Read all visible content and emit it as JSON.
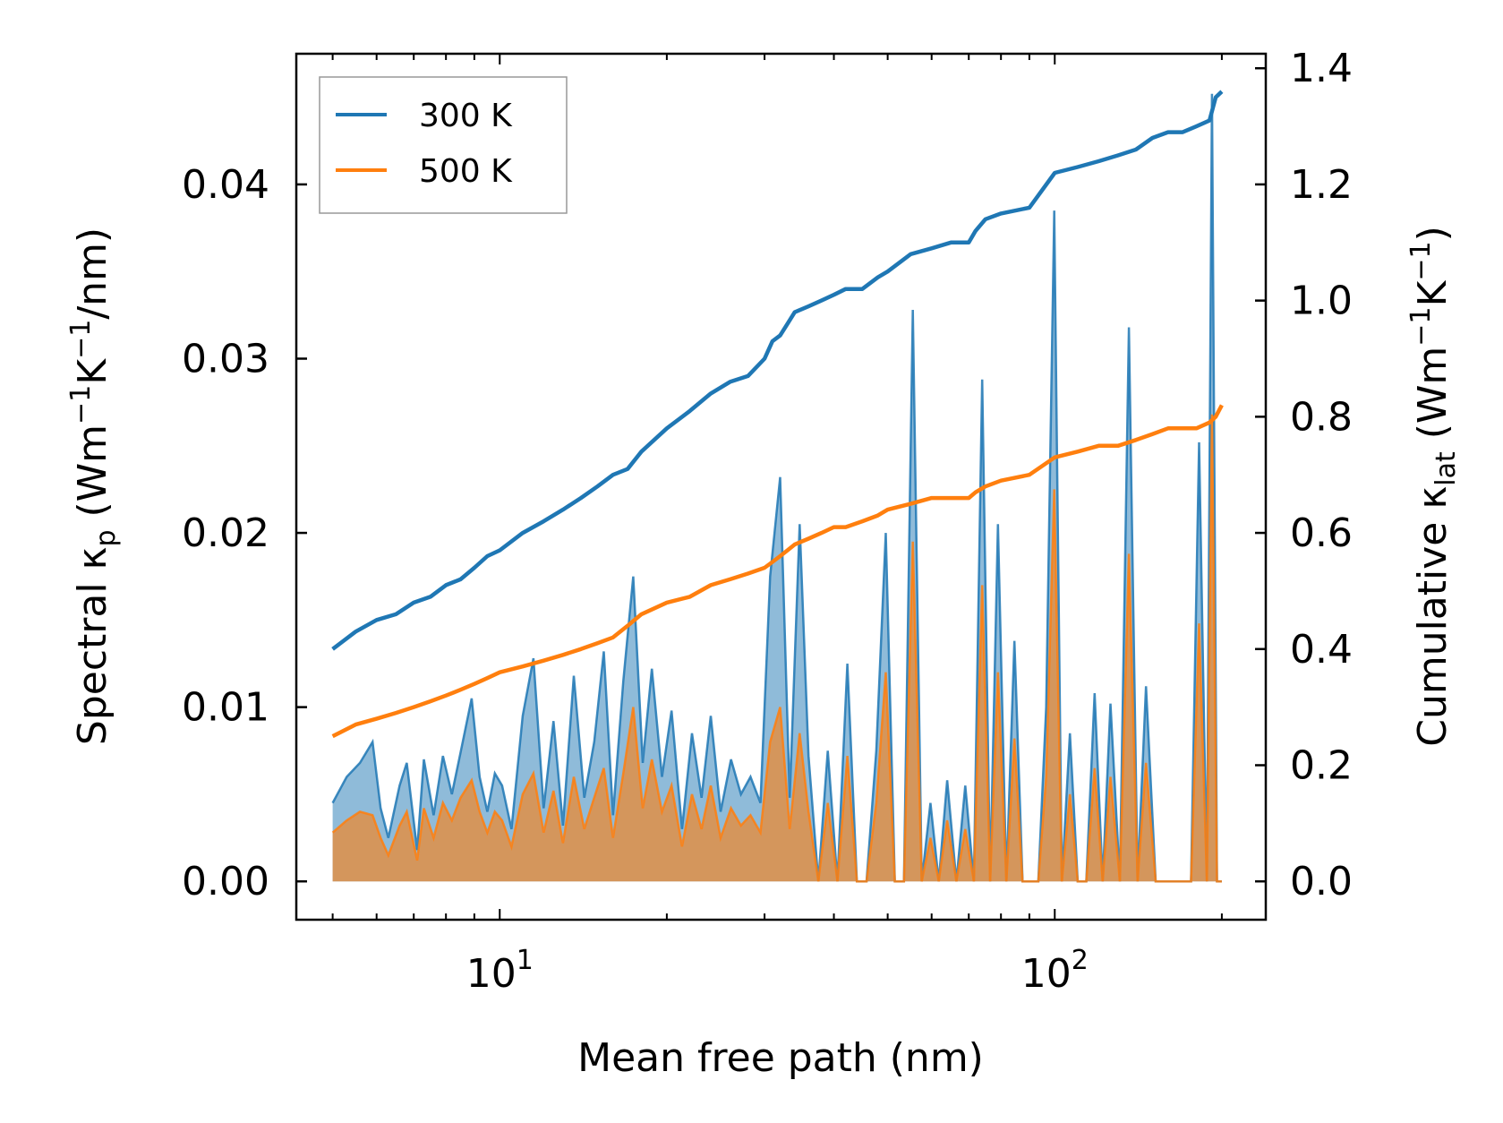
{
  "chart_data": {
    "type": "line",
    "title": "",
    "xlabel": "Mean free path (nm)",
    "ylabel_left": {
      "pre": "Spectral κ",
      "sub": "p",
      "post": " (Wm",
      "sup1": "−1",
      "mid": "K",
      "sup2": "−1",
      "end": "/nm)"
    },
    "ylabel_right": {
      "pre": "Cumulative κ",
      "sub": "lat",
      "post": " (Wm",
      "sup1": "−1",
      "mid": "K",
      "sup2": "−1",
      "end": ")"
    },
    "xscale": "log",
    "xlim": [
      4.3,
      240
    ],
    "ylim_left": [
      -0.0022,
      0.0475
    ],
    "ylim_right": [
      -0.066,
      1.425
    ],
    "x_ticks": [
      {
        "base": "10",
        "exp": "1",
        "value": 10
      },
      {
        "base": "10",
        "exp": "2",
        "value": 100
      }
    ],
    "y_left_ticks": [
      "0.00",
      "0.01",
      "0.02",
      "0.03",
      "0.04"
    ],
    "y_right_ticks": [
      "0.0",
      "0.2",
      "0.4",
      "0.6",
      "0.8",
      "1.0",
      "1.2",
      "1.4"
    ],
    "legend": {
      "position": "top-left",
      "entries": [
        {
          "label": "300 K",
          "color": "#1f77b4"
        },
        {
          "label": "500 K",
          "color": "#ff7f0e"
        }
      ]
    },
    "series_spectral": [
      {
        "name": "300 K",
        "color": "#1f77b4",
        "axis": "left",
        "x": [
          5.0,
          5.3,
          5.6,
          5.9,
          6.1,
          6.3,
          6.6,
          6.8,
          7.1,
          7.3,
          7.6,
          7.9,
          8.2,
          8.5,
          8.9,
          9.2,
          9.5,
          9.8,
          10.1,
          10.5,
          11.0,
          11.5,
          12.0,
          12.5,
          13.0,
          13.6,
          14.2,
          14.8,
          15.4,
          16.0,
          16.7,
          17.4,
          18.1,
          18.8,
          19.6,
          20.4,
          21.3,
          22.2,
          23.1,
          24.0,
          25.0,
          26.1,
          27.2,
          28.3,
          29.5,
          30.7,
          32.0,
          33.3,
          34.7,
          36.0,
          37.5,
          39.0,
          40.6,
          42.3,
          44.0,
          45.8,
          47.7,
          49.6,
          51.5,
          53.5,
          55.5,
          57.6,
          59.7,
          61.8,
          64.0,
          66.5,
          69.0,
          71.5,
          74.0,
          76.5,
          79.0,
          81.8,
          84.6,
          87.5,
          90.4,
          93.4,
          96.5,
          99.8,
          103.0,
          106.5,
          110.0,
          114.0,
          118.0,
          122.0,
          126.0,
          131.0,
          136.0,
          141.0,
          146.0,
          152.0,
          158.0,
          164.0,
          170.0,
          176.0,
          182.0,
          188.0,
          192.0,
          196.0,
          200.0
        ],
        "y": [
          0.0045,
          0.006,
          0.0068,
          0.008,
          0.0042,
          0.0025,
          0.0055,
          0.0068,
          0.0018,
          0.007,
          0.0038,
          0.0072,
          0.005,
          0.0074,
          0.0105,
          0.006,
          0.004,
          0.0062,
          0.0055,
          0.003,
          0.0095,
          0.0128,
          0.0042,
          0.0092,
          0.0032,
          0.0118,
          0.0048,
          0.008,
          0.0132,
          0.0038,
          0.0115,
          0.0175,
          0.0068,
          0.0122,
          0.006,
          0.0098,
          0.003,
          0.0085,
          0.0048,
          0.0095,
          0.004,
          0.007,
          0.005,
          0.006,
          0.0045,
          0.0175,
          0.0232,
          0.0048,
          0.0205,
          0.0072,
          0.0,
          0.0075,
          0.0,
          0.0125,
          0.0,
          0.0,
          0.0075,
          0.02,
          0.0,
          0.0,
          0.0328,
          0.0,
          0.0045,
          0.0,
          0.0058,
          0.0,
          0.0055,
          0.0,
          0.0288,
          0.0,
          0.0205,
          0.0,
          0.0138,
          0.0,
          0.0,
          0.0,
          0.01,
          0.0385,
          0.0,
          0.0085,
          0.0,
          0.0,
          0.0108,
          0.0,
          0.0102,
          0.0,
          0.0318,
          0.0,
          0.0112,
          0.0,
          0.0,
          0.0,
          0.0,
          0.0,
          0.0252,
          0.0,
          0.0452,
          0.0,
          0.0
        ]
      },
      {
        "name": "500 K",
        "color": "#ff7f0e",
        "axis": "left",
        "x": [
          5.0,
          5.3,
          5.6,
          5.9,
          6.1,
          6.3,
          6.6,
          6.8,
          7.1,
          7.3,
          7.6,
          7.9,
          8.2,
          8.5,
          8.9,
          9.2,
          9.5,
          9.8,
          10.1,
          10.5,
          11.0,
          11.5,
          12.0,
          12.5,
          13.0,
          13.6,
          14.2,
          14.8,
          15.4,
          16.0,
          16.7,
          17.4,
          18.1,
          18.8,
          19.6,
          20.4,
          21.3,
          22.2,
          23.1,
          24.0,
          25.0,
          26.1,
          27.2,
          28.3,
          29.5,
          30.7,
          32.0,
          33.3,
          34.7,
          36.0,
          37.5,
          39.0,
          40.6,
          42.3,
          44.0,
          45.8,
          47.7,
          49.6,
          51.5,
          53.5,
          55.5,
          57.6,
          59.7,
          61.8,
          64.0,
          66.5,
          69.0,
          71.5,
          74.0,
          76.5,
          79.0,
          81.8,
          84.6,
          87.5,
          90.4,
          93.4,
          96.5,
          99.8,
          103.0,
          106.5,
          110.0,
          114.0,
          118.0,
          122.0,
          126.0,
          131.0,
          136.0,
          141.0,
          146.0,
          152.0,
          158.0,
          164.0,
          170.0,
          176.0,
          182.0,
          188.0,
          192.0,
          196.0,
          200.0
        ],
        "y": [
          0.0028,
          0.0035,
          0.004,
          0.0038,
          0.0025,
          0.0015,
          0.0032,
          0.004,
          0.0012,
          0.0042,
          0.0025,
          0.0045,
          0.0035,
          0.0048,
          0.0058,
          0.004,
          0.0028,
          0.004,
          0.0035,
          0.002,
          0.005,
          0.0062,
          0.0028,
          0.0052,
          0.0022,
          0.006,
          0.003,
          0.0048,
          0.0065,
          0.0025,
          0.0062,
          0.01,
          0.0042,
          0.007,
          0.004,
          0.0055,
          0.002,
          0.005,
          0.003,
          0.0055,
          0.0025,
          0.0042,
          0.0032,
          0.0038,
          0.0028,
          0.008,
          0.01,
          0.003,
          0.0085,
          0.004,
          0.0,
          0.0045,
          0.0,
          0.0072,
          0.0,
          0.0,
          0.0045,
          0.012,
          0.0,
          0.0,
          0.0195,
          0.0,
          0.0025,
          0.0,
          0.0035,
          0.0,
          0.003,
          0.0,
          0.017,
          0.0,
          0.012,
          0.0,
          0.0082,
          0.0,
          0.0,
          0.0,
          0.006,
          0.0225,
          0.0,
          0.005,
          0.0,
          0.0,
          0.0065,
          0.0,
          0.006,
          0.0,
          0.0188,
          0.0,
          0.0068,
          0.0,
          0.0,
          0.0,
          0.0,
          0.0,
          0.0148,
          0.0,
          0.0268,
          0.0,
          0.0
        ]
      }
    ],
    "series_cumulative": [
      {
        "name": "300 K",
        "color": "#1f77b4",
        "axis": "right",
        "x": [
          5,
          5.5,
          6,
          6.5,
          7,
          7.5,
          8,
          8.5,
          9,
          9.5,
          10,
          11,
          12,
          13,
          14,
          15,
          16,
          17,
          18,
          20,
          22,
          24,
          26,
          28,
          30,
          31,
          32,
          33,
          34,
          36,
          38,
          40,
          42,
          45,
          48,
          50,
          55,
          60,
          65,
          70,
          72,
          75,
          80,
          90,
          100,
          110,
          120,
          130,
          140,
          150,
          160,
          170,
          180,
          190,
          195,
          200
        ],
        "y": [
          0.4,
          0.43,
          0.45,
          0.46,
          0.48,
          0.49,
          0.51,
          0.52,
          0.54,
          0.56,
          0.57,
          0.6,
          0.62,
          0.64,
          0.66,
          0.68,
          0.7,
          0.71,
          0.74,
          0.78,
          0.81,
          0.84,
          0.86,
          0.87,
          0.9,
          0.93,
          0.94,
          0.96,
          0.98,
          0.99,
          1.0,
          1.01,
          1.02,
          1.02,
          1.04,
          1.05,
          1.08,
          1.09,
          1.1,
          1.1,
          1.12,
          1.14,
          1.15,
          1.16,
          1.22,
          1.23,
          1.24,
          1.25,
          1.26,
          1.28,
          1.29,
          1.29,
          1.3,
          1.31,
          1.35,
          1.36
        ]
      },
      {
        "name": "500 K",
        "color": "#ff7f0e",
        "axis": "right",
        "x": [
          5,
          5.5,
          6,
          6.5,
          7,
          7.5,
          8,
          8.5,
          9,
          9.5,
          10,
          11,
          12,
          13,
          14,
          15,
          16,
          17,
          18,
          20,
          22,
          24,
          26,
          28,
          30,
          31,
          32,
          33,
          34,
          36,
          38,
          40,
          42,
          45,
          48,
          50,
          55,
          60,
          65,
          70,
          72,
          75,
          80,
          90,
          100,
          110,
          120,
          130,
          140,
          150,
          160,
          170,
          180,
          190,
          195,
          200
        ],
        "y": [
          0.25,
          0.27,
          0.28,
          0.29,
          0.3,
          0.31,
          0.32,
          0.33,
          0.34,
          0.35,
          0.36,
          0.37,
          0.38,
          0.39,
          0.4,
          0.41,
          0.42,
          0.44,
          0.46,
          0.48,
          0.49,
          0.51,
          0.52,
          0.53,
          0.54,
          0.55,
          0.56,
          0.57,
          0.58,
          0.59,
          0.6,
          0.61,
          0.61,
          0.62,
          0.63,
          0.64,
          0.65,
          0.66,
          0.66,
          0.66,
          0.67,
          0.68,
          0.69,
          0.7,
          0.73,
          0.74,
          0.75,
          0.75,
          0.76,
          0.77,
          0.78,
          0.78,
          0.78,
          0.79,
          0.8,
          0.82
        ]
      }
    ]
  }
}
